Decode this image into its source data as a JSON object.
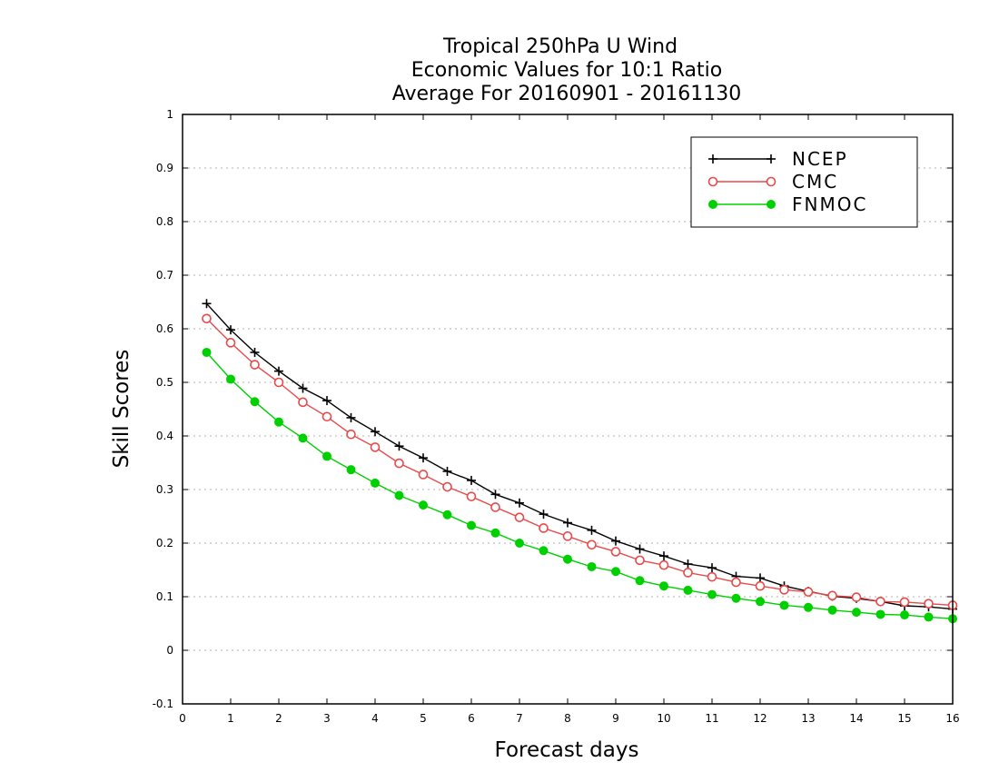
{
  "chart_data": {
    "type": "line",
    "title": [
      "Tropical 250hPa U Wind",
      "Economic Values for 10:1 Ratio",
      "Average For 20160901 - 20161130"
    ],
    "xlabel": "Forecast days",
    "ylabel": "Skill Scores",
    "xlim": [
      0,
      16
    ],
    "ylim": [
      -0.1,
      1
    ],
    "xticks": [
      0,
      1,
      2,
      3,
      4,
      5,
      6,
      7,
      8,
      9,
      10,
      11,
      12,
      13,
      14,
      15,
      16
    ],
    "xtick_labels": [
      "0",
      "1",
      "2",
      "3",
      "4",
      "5",
      "6",
      "7",
      "8",
      "9",
      "10",
      "11",
      "12",
      "13",
      "14",
      "15",
      "16"
    ],
    "yticks": [
      -0.1,
      0,
      0.1,
      0.2,
      0.3,
      0.4,
      0.5,
      0.6,
      0.7,
      0.8,
      0.9,
      1
    ],
    "ytick_labels": [
      "-0.1",
      "0",
      "0.1",
      "0.2",
      "0.3",
      "0.4",
      "0.5",
      "0.6",
      "0.7",
      "0.8",
      "0.9",
      "1"
    ],
    "grid": "horizontal dotted",
    "legend_position": "top-right",
    "x": [
      0.5,
      1,
      1.5,
      2,
      2.5,
      3,
      3.5,
      4,
      4.5,
      5,
      5.5,
      6,
      6.5,
      7,
      7.5,
      8,
      8.5,
      9,
      9.5,
      10,
      10.5,
      11,
      11.5,
      12,
      12.5,
      13,
      13.5,
      14,
      14.5,
      15,
      15.5,
      16
    ],
    "series": [
      {
        "name": "NCEP",
        "color": "#000000",
        "marker": "plus",
        "values": [
          0.647,
          0.598,
          0.556,
          0.521,
          0.489,
          0.466,
          0.434,
          0.408,
          0.381,
          0.359,
          0.334,
          0.317,
          0.291,
          0.275,
          0.254,
          0.238,
          0.224,
          0.204,
          0.189,
          0.176,
          0.161,
          0.154,
          0.138,
          0.135,
          0.12,
          0.11,
          0.101,
          0.097,
          0.091,
          0.083,
          0.081,
          0.077
        ]
      },
      {
        "name": "CMC",
        "color": "#e84a4a",
        "marker": "open-circle",
        "values": [
          0.619,
          0.574,
          0.533,
          0.5,
          0.463,
          0.436,
          0.403,
          0.379,
          0.349,
          0.328,
          0.305,
          0.287,
          0.267,
          0.248,
          0.228,
          0.213,
          0.197,
          0.184,
          0.168,
          0.159,
          0.145,
          0.137,
          0.127,
          0.12,
          0.113,
          0.109,
          0.102,
          0.099,
          0.091,
          0.09,
          0.087,
          0.084
        ]
      },
      {
        "name": "FNMOC",
        "color": "#00d000",
        "marker": "filled-circle",
        "values": [
          0.556,
          0.506,
          0.464,
          0.426,
          0.396,
          0.362,
          0.337,
          0.312,
          0.289,
          0.271,
          0.253,
          0.233,
          0.219,
          0.2,
          0.186,
          0.17,
          0.156,
          0.147,
          0.13,
          0.12,
          0.112,
          0.104,
          0.097,
          0.091,
          0.084,
          0.08,
          0.075,
          0.071,
          0.067,
          0.066,
          0.062,
          0.059
        ]
      }
    ]
  }
}
